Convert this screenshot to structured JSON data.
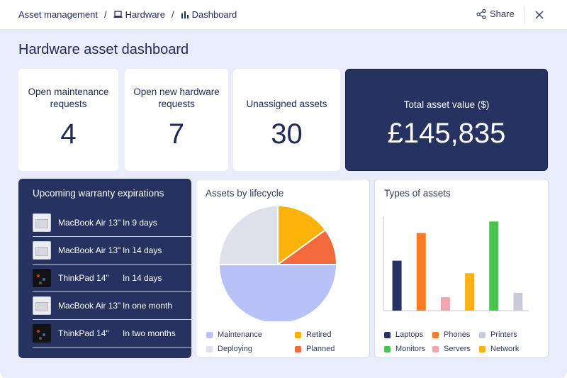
{
  "breadcrumb": {
    "items": [
      "Asset management",
      "Hardware",
      "Dashboard"
    ],
    "separator": "/"
  },
  "header": {
    "share_label": "Share"
  },
  "page_title": "Hardware asset dashboard",
  "kpis": [
    {
      "label_lines": [
        "Open maintenance",
        "requests"
      ],
      "value": "4"
    },
    {
      "label_lines": [
        "Open new hardware",
        "requests"
      ],
      "value": "7"
    },
    {
      "label_lines": [
        "Unassigned assets"
      ],
      "value": "30"
    },
    {
      "label_lines": [
        "Total asset value ($)"
      ],
      "value": "£145,835"
    }
  ],
  "warranty": {
    "title": "Upcoming warranty expirations",
    "items": [
      {
        "device": "MacBook Air 13\"",
        "when": "In 9 days",
        "thumb": "laptop-thumbnail"
      },
      {
        "device": "MacBook Air 13\"",
        "when": "In 14 days",
        "thumb": "laptop-thumbnail"
      },
      {
        "device": "ThinkPad 14\"",
        "when": "In 14 days",
        "thumb": "laptop-thumbnail-dark"
      },
      {
        "device": "MacBook Air 13\"",
        "when": "In one month",
        "thumb": "laptop-thumbnail"
      },
      {
        "device": "ThinkPad 14\"",
        "when": "In two months",
        "thumb": "laptop-thumbnail-dark"
      }
    ]
  },
  "colors": {
    "navy": "#26325f",
    "page_bg": "#e9ecfb",
    "maintenance": "#b8c2f6",
    "retired": "#f9b208",
    "deploying": "#dfe1ea",
    "planned": "#f26a3b",
    "laptops": "#26325f",
    "phones": "#f57c23",
    "printers": "#c8ccd8",
    "monitors": "#4cc34f",
    "servers": "#f2a5ad",
    "network": "#fab21a"
  },
  "chart_data": [
    {
      "type": "pie",
      "title": "Assets by lifecycle",
      "slices": [
        {
          "label": "Retired",
          "value": 15
        },
        {
          "label": "Planned",
          "value": 10
        },
        {
          "label": "Maintenance",
          "value": 50
        },
        {
          "label": "Deploying",
          "value": 25
        }
      ],
      "legend": [
        "Maintenance",
        "Retired",
        "Deploying",
        "Planned"
      ],
      "legend_placement": "bottom"
    },
    {
      "type": "bar",
      "title": "Types of assets",
      "categories": [
        "Laptops",
        "Phones",
        "Servers",
        "Network",
        "Monitors",
        "Printers"
      ],
      "values": [
        56,
        87,
        15,
        42,
        100,
        20
      ],
      "ylim": [
        0,
        105
      ],
      "legend": [
        "Laptops",
        "Phones",
        "Printers",
        "Monitors",
        "Servers",
        "Network"
      ],
      "legend_placement": "bottom",
      "axis_ticks_shown": false
    }
  ]
}
